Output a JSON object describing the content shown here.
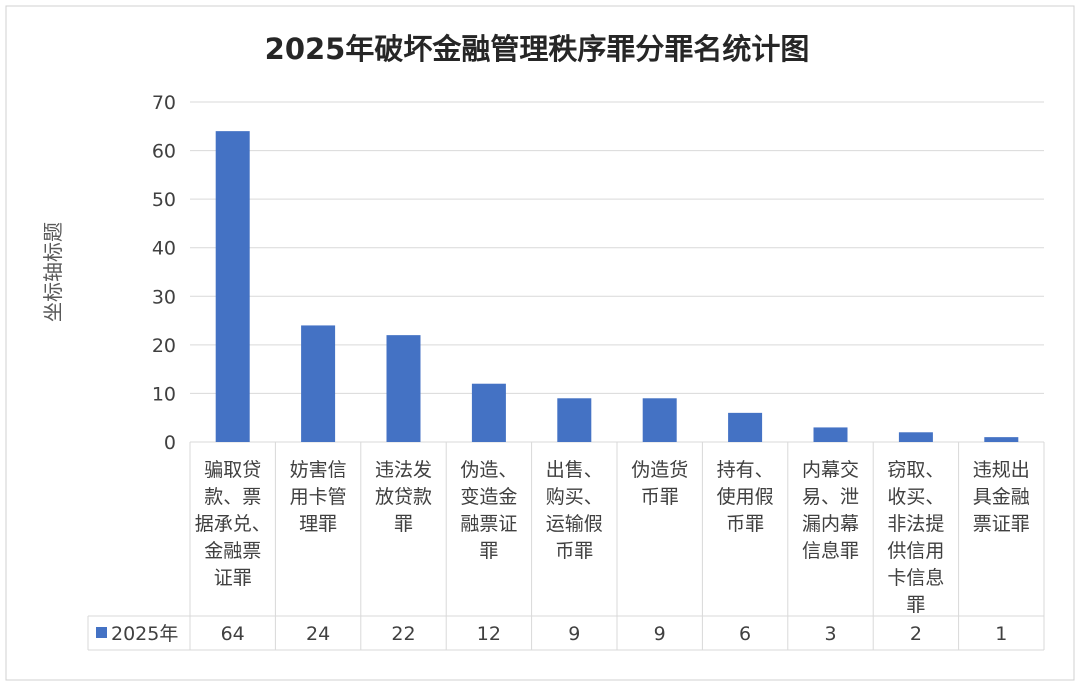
{
  "chart_data": {
    "type": "bar",
    "title": "2025年破坏金融管理秩序罪分罪名统计图",
    "ylabel": "坐标轴标题",
    "xlabel": "",
    "ylim": [
      0,
      70
    ],
    "yticks": [
      0,
      10,
      20,
      30,
      40,
      50,
      60,
      70
    ],
    "grid": true,
    "legend": "bottom-left (data table)",
    "categories": [
      [
        "骗取贷",
        "款、票",
        "据承兑、",
        "金融票",
        "证罪"
      ],
      [
        "妨害信",
        "用卡管",
        "理罪"
      ],
      [
        "违法发",
        "放贷款",
        "罪"
      ],
      [
        "伪造、",
        "变造金",
        "融票证",
        "罪"
      ],
      [
        "出售、",
        "购买、",
        "运输假",
        "币罪"
      ],
      [
        "伪造货",
        "币罪"
      ],
      [
        "持有、",
        "使用假",
        "币罪"
      ],
      [
        "内幕交",
        "易、泄",
        "漏内幕",
        "信息罪"
      ],
      [
        "窃取、",
        "收买、",
        "非法提",
        "供信用",
        "卡信息",
        "罪"
      ],
      [
        "违规出",
        "具金融",
        "票证罪"
      ]
    ],
    "series": [
      {
        "name": "2025年",
        "values": [
          64,
          24,
          22,
          12,
          9,
          9,
          6,
          3,
          2,
          1
        ]
      }
    ],
    "colors": {
      "bar": "#4472C4",
      "grid": "#d9d9d9",
      "text": "#404040",
      "title": "#262626"
    }
  }
}
